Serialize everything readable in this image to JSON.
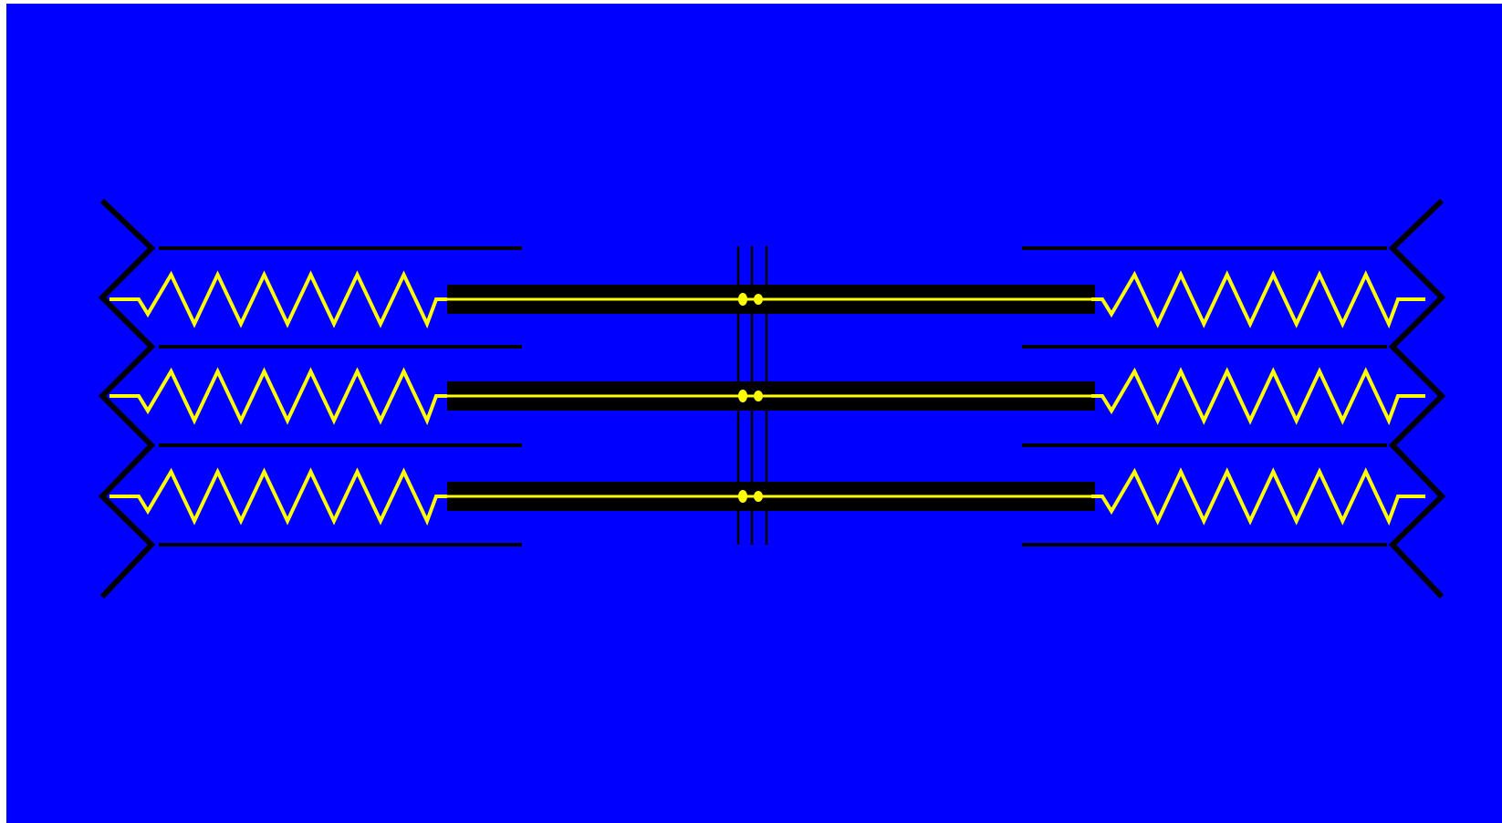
{
  "diagram": {
    "row_count": 3,
    "coils_per_spring": 6,
    "colors": {
      "background": "#0000ff",
      "frame": "#000000",
      "rod": "#000000",
      "spring": "#ffff00",
      "center_dot": "#ffff00",
      "page_edge": "#ffffff"
    },
    "icons": {
      "wall": "zigzag-wall-icon",
      "spring": "coil-spring-icon",
      "rod": "rigid-rod-icon",
      "junction": "center-junction-icon"
    }
  }
}
